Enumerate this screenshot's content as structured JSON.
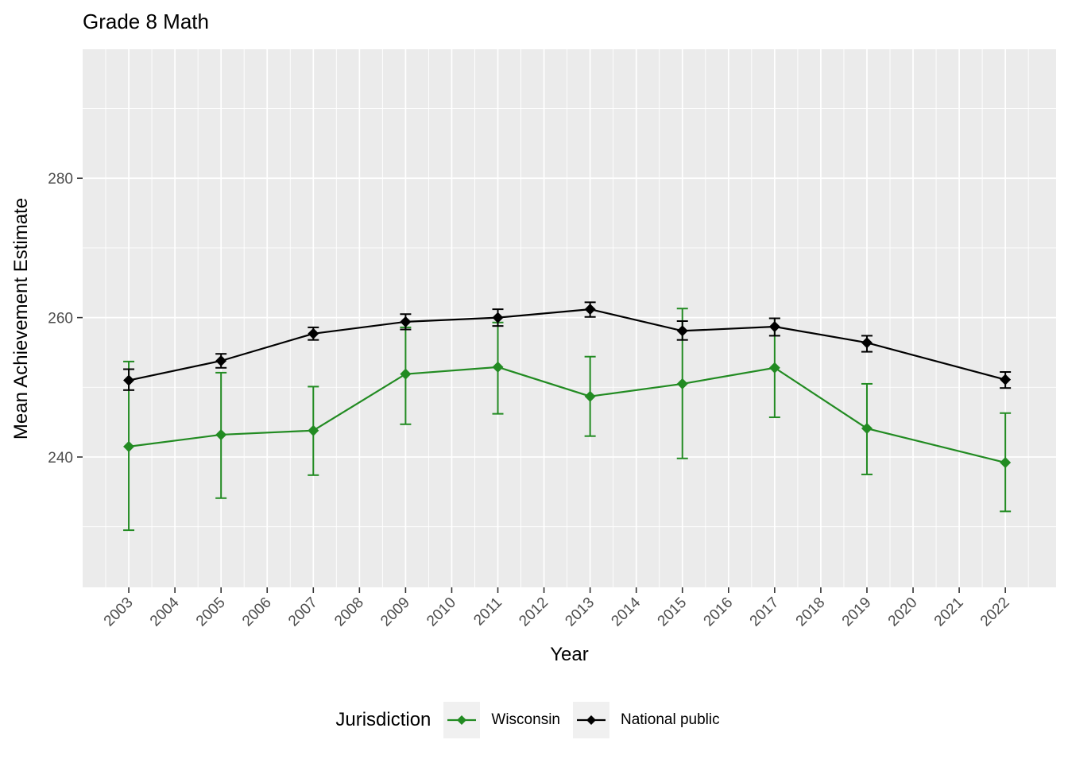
{
  "title": "Grade 8 Math",
  "legend": {
    "title": "Jurisdiction",
    "position": "bottom"
  },
  "colors": {
    "panel_bg": "#EBEBEB",
    "grid": "#FFFFFF",
    "axis_text": "#4D4D4D",
    "tick_mark": "#333333",
    "legend_key_bg": "#F0F0F0",
    "wisconsin": "#228B22",
    "national_public": "#000000"
  },
  "chart_data": {
    "type": "line",
    "title": "Grade 8 Math",
    "xlabel": "Year",
    "ylabel": "Mean Achievement Estimate",
    "x_ticks": [
      2003,
      2004,
      2005,
      2006,
      2007,
      2008,
      2009,
      2010,
      2011,
      2012,
      2013,
      2014,
      2015,
      2016,
      2017,
      2018,
      2019,
      2020,
      2021,
      2022
    ],
    "y_ticks": [
      240,
      260,
      280
    ],
    "xlim": [
      2002.0,
      2023.1
    ],
    "ylim": [
      221.3,
      298.5
    ],
    "grid": true,
    "legend_position": "bottom",
    "x": [
      2003,
      2005,
      2007,
      2009,
      2011,
      2013,
      2015,
      2017,
      2019,
      2022
    ],
    "series": [
      {
        "name": "Wisconsin",
        "color": "#228B22",
        "values": [
          241.5,
          243.2,
          243.8,
          251.9,
          252.9,
          248.7,
          250.5,
          252.8,
          244.1,
          239.2
        ],
        "ci_low": [
          229.5,
          234.1,
          237.4,
          244.7,
          246.2,
          243.0,
          239.8,
          245.7,
          237.5,
          232.2
        ],
        "ci_high": [
          253.7,
          252.1,
          250.1,
          258.6,
          259.3,
          254.4,
          261.3,
          259.9,
          250.5,
          246.3
        ]
      },
      {
        "name": "National public",
        "color": "#000000",
        "values": [
          251.0,
          253.8,
          257.7,
          259.4,
          260.0,
          261.2,
          258.1,
          258.7,
          256.4,
          251.1
        ],
        "ci_low": [
          249.6,
          252.8,
          256.8,
          258.3,
          258.8,
          260.1,
          256.8,
          257.4,
          255.1,
          249.9
        ],
        "ci_high": [
          252.6,
          254.8,
          258.6,
          260.5,
          261.2,
          262.2,
          259.5,
          259.9,
          257.4,
          252.2
        ]
      }
    ]
  }
}
